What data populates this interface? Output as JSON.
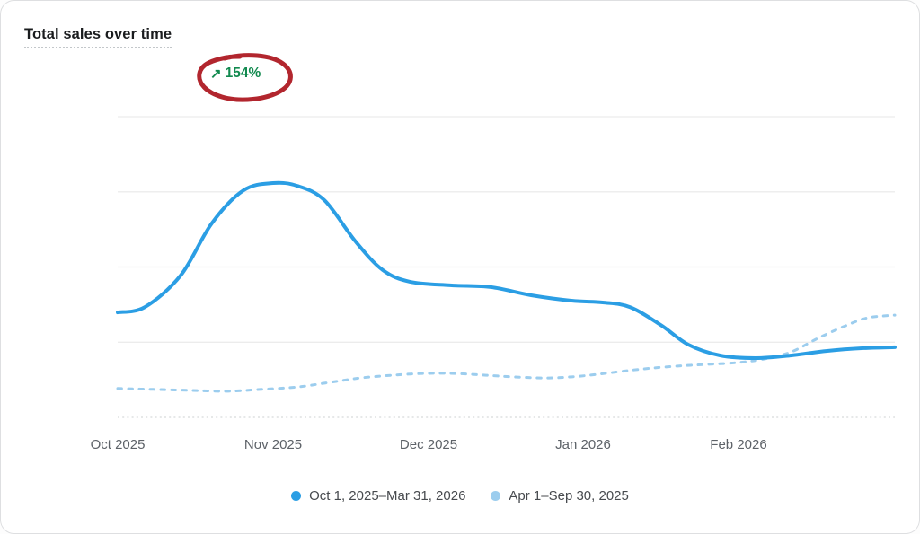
{
  "card": {
    "title": "Total sales over time"
  },
  "badge": {
    "arrow_icon": "↗",
    "value": "154%",
    "color": "#128A4F"
  },
  "annotation": {
    "shape": "hand-drawn red circle",
    "target": "154% change badge",
    "color": "#B2262E"
  },
  "chart_data": {
    "type": "line",
    "title": "Total sales over time",
    "change_percent": "154%",
    "x_tick_labels": [
      "Oct 2025",
      "Nov 2025",
      "Dec 2025",
      "Jan 2026",
      "Feb 2026"
    ],
    "y_axis": "unlabeled",
    "value_scale": "relative 0-100 (no y-axis tick labels shown)",
    "grid": "horizontal",
    "legend_position": "bottom",
    "series": [
      {
        "name": "Oct 1, 2025–Mar 31, 2026",
        "style": "solid",
        "color": "#2B9EE4",
        "points": [
          [
            0,
            34.9
          ],
          [
            0.035,
            36.7
          ],
          [
            0.081,
            47.2
          ],
          [
            0.121,
            64.5
          ],
          [
            0.162,
            75.5
          ],
          [
            0.2,
            77.9
          ],
          [
            0.231,
            77.0
          ],
          [
            0.266,
            72.2
          ],
          [
            0.306,
            58.5
          ],
          [
            0.341,
            49.0
          ],
          [
            0.376,
            45.1
          ],
          [
            0.428,
            43.9
          ],
          [
            0.48,
            43.3
          ],
          [
            0.532,
            40.6
          ],
          [
            0.584,
            38.8
          ],
          [
            0.624,
            38.2
          ],
          [
            0.659,
            36.7
          ],
          [
            0.699,
            30.7
          ],
          [
            0.734,
            24.2
          ],
          [
            0.775,
            20.6
          ],
          [
            0.821,
            19.7
          ],
          [
            0.867,
            20.6
          ],
          [
            0.913,
            22.1
          ],
          [
            0.96,
            23.0
          ],
          [
            1,
            23.3
          ]
        ]
      },
      {
        "name": "Apr 1–Sep 30, 2025",
        "style": "dashed",
        "color": "#9CCDEE",
        "points": [
          [
            0,
            9.6
          ],
          [
            0.046,
            9.3
          ],
          [
            0.092,
            9.0
          ],
          [
            0.139,
            8.7
          ],
          [
            0.185,
            9.3
          ],
          [
            0.231,
            10.1
          ],
          [
            0.272,
            11.6
          ],
          [
            0.312,
            13.1
          ],
          [
            0.353,
            14.0
          ],
          [
            0.393,
            14.6
          ],
          [
            0.434,
            14.6
          ],
          [
            0.474,
            14.0
          ],
          [
            0.514,
            13.4
          ],
          [
            0.555,
            13.1
          ],
          [
            0.595,
            13.7
          ],
          [
            0.636,
            14.9
          ],
          [
            0.676,
            16.1
          ],
          [
            0.717,
            17.0
          ],
          [
            0.757,
            17.6
          ],
          [
            0.798,
            18.2
          ],
          [
            0.832,
            19.4
          ],
          [
            0.867,
            21.8
          ],
          [
            0.901,
            26.3
          ],
          [
            0.936,
            30.4
          ],
          [
            0.965,
            33.1
          ],
          [
            1,
            34.0
          ]
        ]
      }
    ]
  },
  "legend": {
    "items": [
      {
        "label": "Oct 1, 2025–Mar 31, 2026",
        "color": "#2B9EE4",
        "style": "solid"
      },
      {
        "label": "Apr 1–Sep 30, 2025",
        "color": "#9CCDEE",
        "style": "dashed"
      }
    ]
  }
}
